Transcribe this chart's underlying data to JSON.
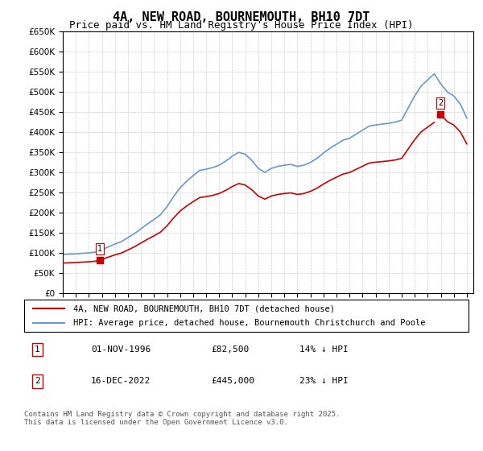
{
  "title": "4A, NEW ROAD, BOURNEMOUTH, BH10 7DT",
  "subtitle": "Price paid vs. HM Land Registry's House Price Index (HPI)",
  "legend_line1": "4A, NEW ROAD, BOURNEMOUTH, BH10 7DT (detached house)",
  "legend_line2": "HPI: Average price, detached house, Bournemouth Christchurch and Poole",
  "transaction1_label": "1",
  "transaction1_date": "01-NOV-1996",
  "transaction1_price": "£82,500",
  "transaction1_hpi": "14% ↓ HPI",
  "transaction2_label": "2",
  "transaction2_date": "16-DEC-2022",
  "transaction2_price": "£445,000",
  "transaction2_hpi": "23% ↓ HPI",
  "footer": "Contains HM Land Registry data © Crown copyright and database right 2025.\nThis data is licensed under the Open Government Licence v3.0.",
  "line_color_red": "#cc0000",
  "line_color_blue": "#6699cc",
  "marker_color_red": "#cc0000",
  "background_color": "#ffffff",
  "grid_color": "#cccccc",
  "ylim": [
    0,
    650000
  ],
  "yticks": [
    0,
    50000,
    100000,
    150000,
    200000,
    250000,
    300000,
    350000,
    400000,
    450000,
    500000,
    550000,
    600000,
    650000
  ],
  "ytick_labels": [
    "£0",
    "£50K",
    "£100K",
    "£150K",
    "£200K",
    "£250K",
    "£300K",
    "£350K",
    "£400K",
    "£450K",
    "£500K",
    "£550K",
    "£600K",
    "£650K"
  ],
  "hpi_years": [
    1994,
    1994.5,
    1995,
    1995.5,
    1996,
    1996.5,
    1997,
    1997.5,
    1998,
    1998.5,
    1999,
    1999.5,
    2000,
    2000.5,
    2001,
    2001.5,
    2002,
    2002.5,
    2003,
    2003.5,
    2004,
    2004.5,
    2005,
    2005.5,
    2006,
    2006.5,
    2007,
    2007.5,
    2008,
    2008.5,
    2009,
    2009.5,
    2010,
    2010.5,
    2011,
    2011.5,
    2012,
    2012.5,
    2013,
    2013.5,
    2014,
    2014.5,
    2015,
    2015.5,
    2016,
    2016.5,
    2017,
    2017.5,
    2018,
    2018.5,
    2019,
    2019.5,
    2020,
    2020.5,
    2021,
    2021.5,
    2022,
    2022.5,
    2023,
    2023.5,
    2024,
    2024.5,
    2025
  ],
  "hpi_values": [
    96000,
    97000,
    97500,
    99000,
    100000,
    102000,
    108000,
    115000,
    122000,
    128000,
    138000,
    148000,
    160000,
    172000,
    183000,
    195000,
    215000,
    240000,
    262000,
    278000,
    292000,
    305000,
    308000,
    312000,
    318000,
    328000,
    340000,
    350000,
    345000,
    330000,
    310000,
    300000,
    310000,
    315000,
    318000,
    320000,
    315000,
    318000,
    325000,
    335000,
    348000,
    360000,
    370000,
    380000,
    385000,
    395000,
    405000,
    415000,
    418000,
    420000,
    422000,
    425000,
    430000,
    460000,
    490000,
    515000,
    530000,
    545000,
    520000,
    500000,
    490000,
    470000,
    435000
  ],
  "price_paid_years": [
    1996.83,
    2022.96
  ],
  "price_paid_values": [
    82500,
    445000
  ],
  "transaction1_x": 1996.83,
  "transaction1_y": 82500,
  "transaction2_x": 2022.96,
  "transaction2_y": 445000,
  "xlim": [
    1994,
    2025.5
  ],
  "xticks": [
    1994,
    1995,
    1996,
    1997,
    1998,
    1999,
    2000,
    2001,
    2002,
    2003,
    2004,
    2005,
    2006,
    2007,
    2008,
    2009,
    2010,
    2011,
    2012,
    2013,
    2014,
    2015,
    2016,
    2017,
    2018,
    2019,
    2020,
    2021,
    2022,
    2023,
    2024,
    2025
  ]
}
